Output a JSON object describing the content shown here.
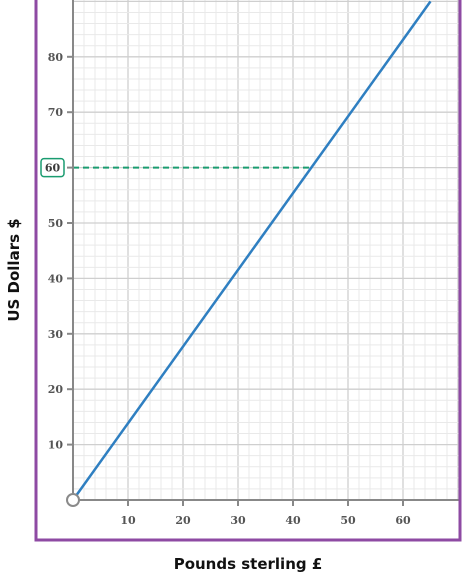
{
  "chart_data": {
    "type": "line",
    "xlabel": "Pounds sterling £",
    "ylabel": "US Dollars $",
    "xlim": [
      0,
      70
    ],
    "ylim": [
      0,
      90
    ],
    "x_ticks": [
      10,
      20,
      30,
      40,
      50,
      60
    ],
    "y_ticks": [
      10,
      20,
      30,
      40,
      50,
      60,
      70,
      80
    ],
    "grid": true,
    "series": [
      {
        "x": [
          0,
          65
        ],
        "y": [
          0,
          90
        ]
      }
    ],
    "highlight": {
      "y": 60,
      "x": 43.3,
      "label": "60"
    },
    "colors": {
      "frame": "#8e4aa3",
      "line": "#2f7fc1",
      "highlight": "#1a9c70",
      "axis": "#888888",
      "grid_major": "#cfcfcf",
      "grid_minor": "#e9e9e9"
    }
  }
}
